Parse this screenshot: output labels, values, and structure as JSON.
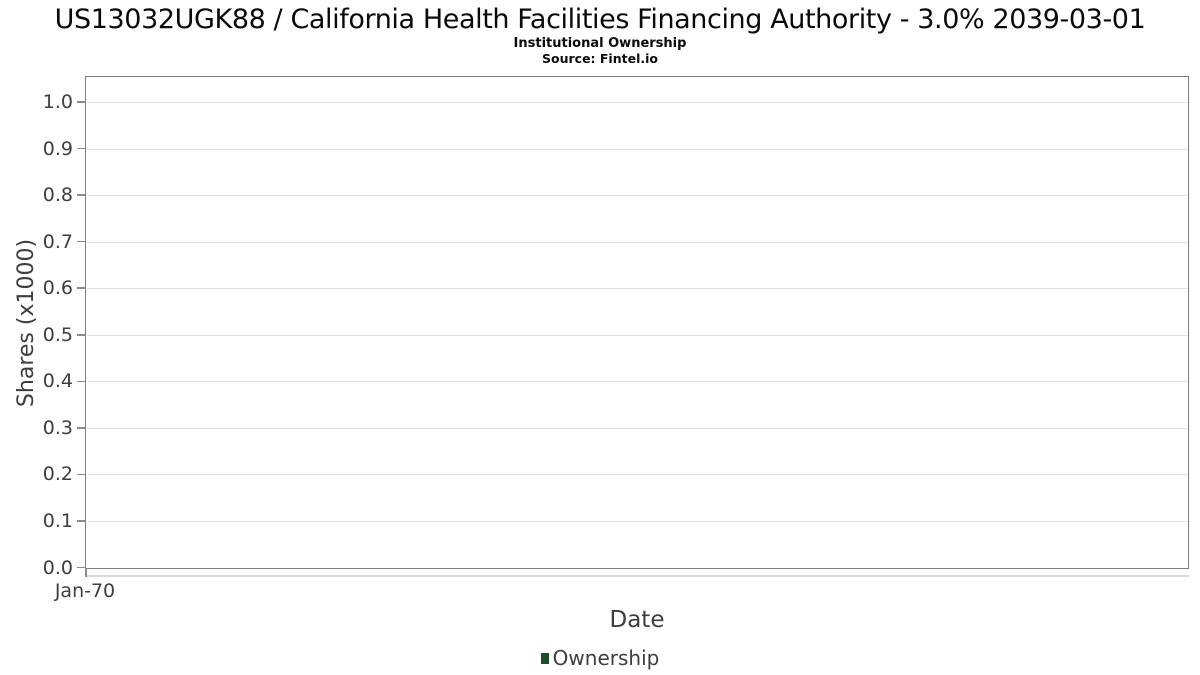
{
  "header": {
    "title": "US13032UGK88 / California Health Facilities Financing Authority - 3.0% 2039-03-01",
    "subtitle": "Institutional Ownership",
    "source": "Source: Fintel.io"
  },
  "chart_data": {
    "type": "bar",
    "title": "US13032UGK88 / California Health Facilities Financing Authority - 3.0% 2039-03-01",
    "subtitle": "Institutional Ownership",
    "source": "Source: Fintel.io",
    "xlabel": "Date",
    "ylabel": "Shares (x1000)",
    "ylim": [
      0,
      1.05
    ],
    "yticks": [
      "0.0",
      "0.1",
      "0.2",
      "0.3",
      "0.4",
      "0.5",
      "0.6",
      "0.7",
      "0.8",
      "0.9",
      "1.0"
    ],
    "xticks": [
      "Jan-70"
    ],
    "categories": [],
    "series": [
      {
        "name": "Ownership",
        "color": "#1d4e2b",
        "values": []
      }
    ],
    "grid": true,
    "legend_position": "bottom",
    "plot_border_color": "#7e7e7e",
    "gridline_color": "#e2e2e2"
  },
  "legend": {
    "items": [
      {
        "label": "Ownership",
        "color": "#1d4e2b"
      }
    ]
  }
}
